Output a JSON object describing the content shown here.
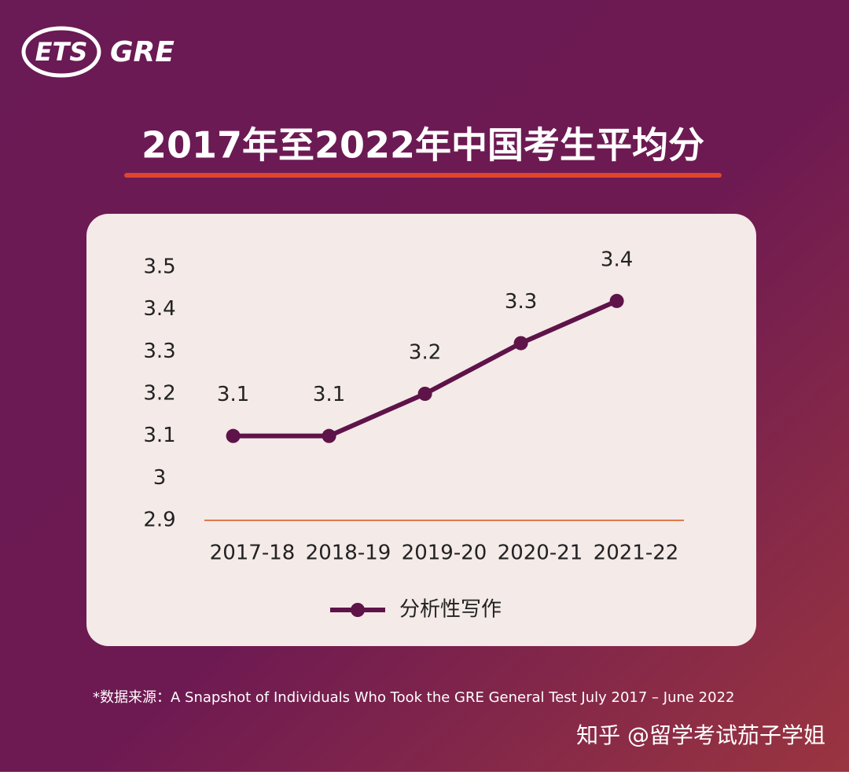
{
  "logo": {
    "ets": "ETS",
    "gre": "GRE"
  },
  "chart_data": {
    "type": "line",
    "title": "2017年至2022年中国考生平均分",
    "categories": [
      "2017-18",
      "2018-19",
      "2019-20",
      "2020-21",
      "2021-22"
    ],
    "series": [
      {
        "name": "分析性写作",
        "color": "#5e1349",
        "values": [
          3.1,
          3.1,
          3.2,
          3.32,
          3.42
        ],
        "value_labels": [
          "3.1",
          "3.1",
          "3.2",
          "3.3",
          "3.4"
        ]
      }
    ],
    "ylim": [
      2.9,
      3.5
    ],
    "yticks": [
      2.9,
      3,
      3.1,
      3.2,
      3.3,
      3.4,
      3.5
    ],
    "grid": false,
    "legend": "bottom"
  },
  "source": "*数据来源：A Snapshot of Individuals Who Took the GRE General Test July 2017 – June 2022",
  "watermark": "知乎 @留学考试茄子学姐"
}
